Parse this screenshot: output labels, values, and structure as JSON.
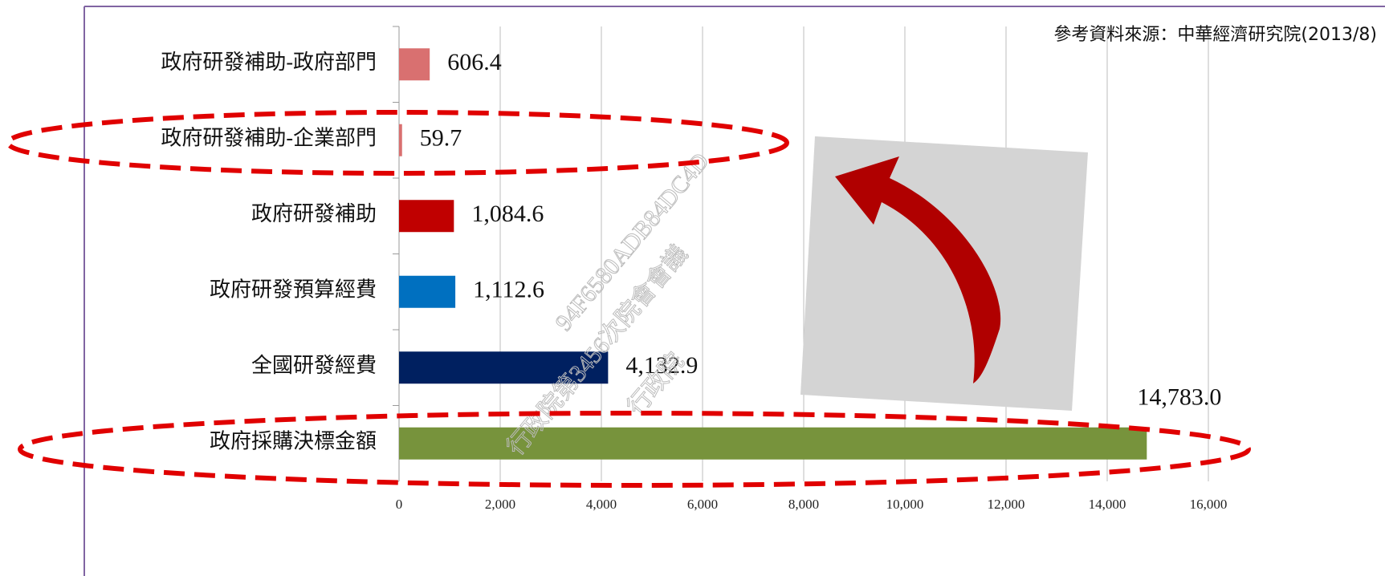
{
  "chart_data": {
    "type": "hbar",
    "annotation": "參考資料來源：中華經濟研究院(2013/8)",
    "watermark": [
      "94F6580ADB84DC4D",
      "行政院第3456次院會會議",
      "行政院"
    ],
    "categories": [
      "政府研發補助-政府部門",
      "政府研發補助-企業部門",
      "政府研發補助",
      "政府研發預算經費",
      "全國研發經費",
      "政府採購決標金額"
    ],
    "values": [
      606.4,
      59.7,
      1084.6,
      1112.6,
      4132.9,
      14783.0
    ],
    "value_labels": [
      "606.4",
      "59.7",
      "1,084.6",
      "1,112.6",
      "4,132.9",
      "14,783.0"
    ],
    "colors": [
      "#d97070",
      "#d97070",
      "#c00000",
      "#0070c0",
      "#002060",
      "#77933c"
    ],
    "xlim": [
      0,
      16000
    ],
    "xticks": [
      0,
      {
        "value": 2000,
        "label": "2,000"
      },
      {
        "value": 4000,
        "label": "4,000"
      },
      {
        "value": 6000,
        "label": "6,000"
      },
      {
        "value": 8000,
        "label": "8,000"
      },
      {
        "value": 10000,
        "label": "10,000"
      },
      {
        "value": 12000,
        "label": "12,000"
      },
      {
        "value": 14000,
        "label": "14,000"
      },
      {
        "value": 16000,
        "label": "16,000"
      }
    ],
    "grid": true
  }
}
